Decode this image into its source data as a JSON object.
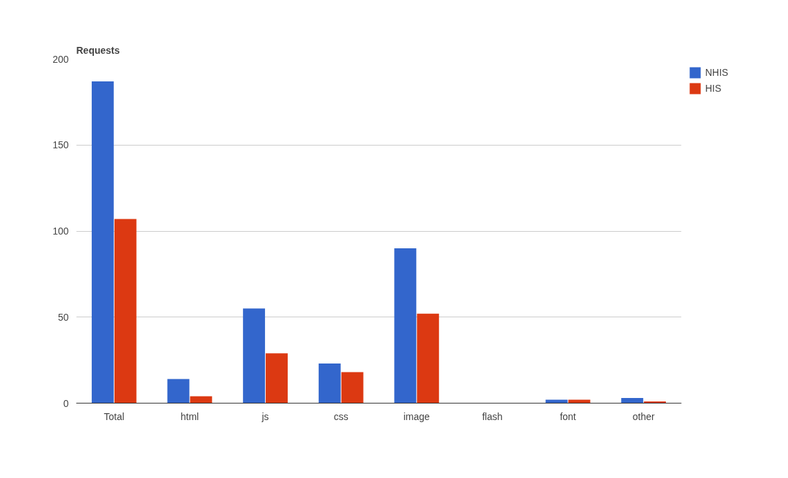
{
  "chart_data": {
    "type": "bar",
    "title": "Requests",
    "categories": [
      "Total",
      "html",
      "js",
      "css",
      "image",
      "flash",
      "font",
      "other"
    ],
    "series": [
      {
        "name": "NHIS",
        "color": "#3366cc",
        "values": [
          187,
          14,
          55,
          23,
          90,
          0,
          2,
          3
        ]
      },
      {
        "name": "HIS",
        "color": "#dc3912",
        "values": [
          107,
          4,
          29,
          18,
          52,
          0,
          2,
          1
        ]
      }
    ],
    "ylim": [
      0,
      200
    ],
    "yticks": [
      0,
      50,
      100,
      150,
      200
    ],
    "grid": "y",
    "legend": "top right"
  }
}
